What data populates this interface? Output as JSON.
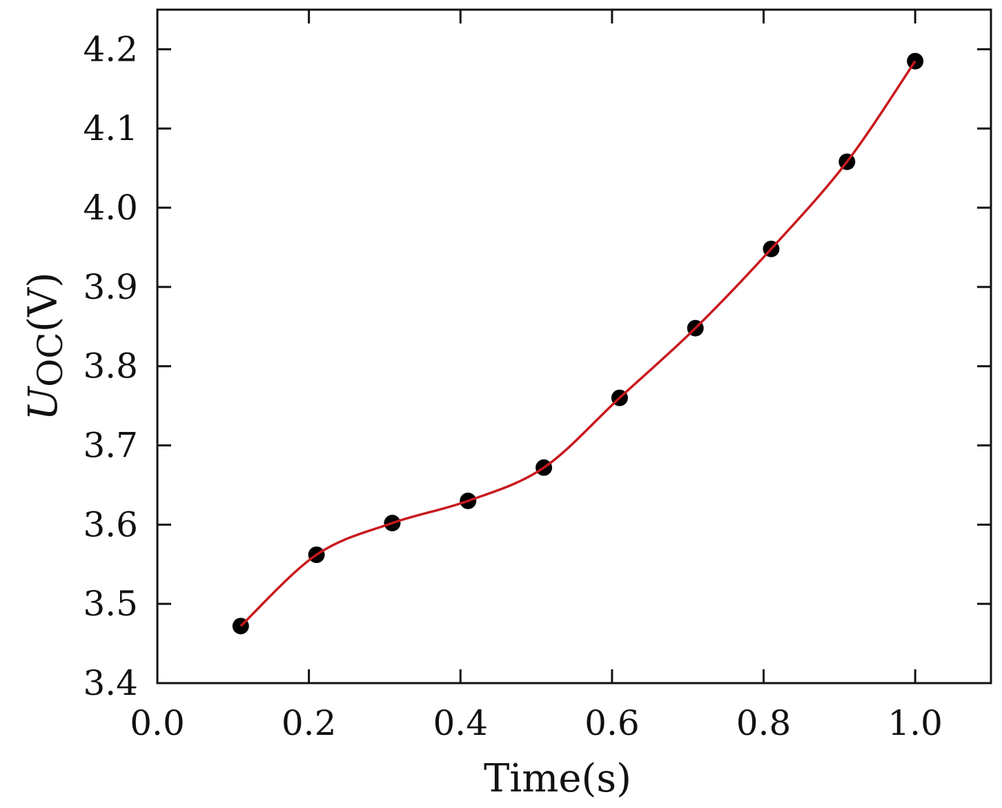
{
  "chart_data": {
    "type": "scatter",
    "title": "",
    "xlabel": "Time(s)",
    "ylabel": {
      "main": "U",
      "sub": "OC",
      "unit": "(V)"
    },
    "xlim": [
      0.0,
      1.1
    ],
    "ylim": [
      3.4,
      4.25
    ],
    "x_ticks": [
      "0.0",
      "0.2",
      "0.4",
      "0.6",
      "0.8",
      "1.0"
    ],
    "y_ticks": [
      "3.4",
      "3.5",
      "3.6",
      "3.7",
      "3.8",
      "3.9",
      "4.0",
      "4.1",
      "4.2"
    ],
    "grid": false,
    "series": [
      {
        "marker_color": "#000000",
        "line_color": "#c8191e",
        "x": [
          0.11,
          0.21,
          0.31,
          0.41,
          0.51,
          0.61,
          0.71,
          0.81,
          0.91,
          1.0
        ],
        "y": [
          3.472,
          3.562,
          3.602,
          3.63,
          3.672,
          3.76,
          3.848,
          3.948,
          4.058,
          4.185
        ]
      }
    ]
  }
}
